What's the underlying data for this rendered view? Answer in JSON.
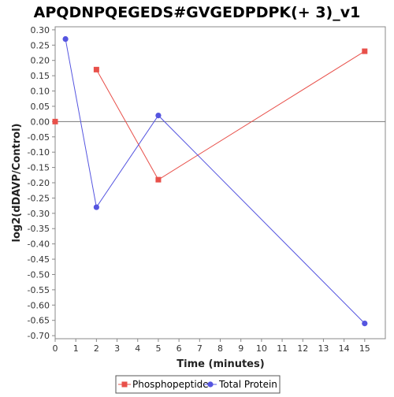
{
  "chart_data": {
    "type": "line",
    "title": "APQDNPQEGEDS#GVGEDPDPK(+ 3)_v1",
    "xlabel": "Time (minutes)",
    "ylabel": "log2(dDAVP/Control)",
    "xlim": [
      0,
      16
    ],
    "ylim": [
      -0.71,
      0.31
    ],
    "xticks": [
      0,
      1,
      2,
      3,
      4,
      5,
      6,
      7,
      8,
      9,
      10,
      11,
      12,
      13,
      14,
      15
    ],
    "xtick_labels": [
      "0",
      "1",
      "2",
      "3",
      "4",
      "5",
      "6",
      "7",
      "8",
      "9",
      "10",
      "11",
      "12",
      "13",
      "14",
      "15"
    ],
    "yticks": [
      0.3,
      0.25,
      0.2,
      0.15,
      0.1,
      0.05,
      0.0,
      -0.05,
      -0.1,
      -0.15,
      -0.2,
      -0.25,
      -0.3,
      -0.35,
      -0.4,
      -0.45,
      -0.5,
      -0.55,
      -0.6,
      -0.65,
      -0.7
    ],
    "ytick_labels": [
      "0.30",
      "0.25",
      "0.20",
      "0.15",
      "0.10",
      "0.05",
      "0.00",
      "-0.05",
      "-0.10",
      "-0.15",
      "-0.20",
      "-0.25",
      "-0.30",
      "-0.35",
      "-0.40",
      "-0.45",
      "-0.50",
      "-0.55",
      "-0.60",
      "-0.65",
      "-0.70"
    ],
    "zero_line": true,
    "grid": false,
    "legend_position": "bottom-center",
    "series": [
      {
        "name": "Phosphopeptide",
        "color": "#e8504a",
        "marker": "square",
        "segments": [
          [
            {
              "x": 0,
              "y": 0.0
            }
          ],
          [
            {
              "x": 2,
              "y": 0.17
            },
            {
              "x": 5,
              "y": -0.19
            },
            {
              "x": 15,
              "y": 0.23
            }
          ]
        ]
      },
      {
        "name": "Total Protein",
        "color": "#5555e0",
        "marker": "circle",
        "segments": [
          [
            {
              "x": 0.5,
              "y": 0.27
            },
            {
              "x": 2,
              "y": -0.28
            },
            {
              "x": 5,
              "y": 0.02
            },
            {
              "x": 15,
              "y": -0.66
            }
          ]
        ]
      }
    ]
  }
}
